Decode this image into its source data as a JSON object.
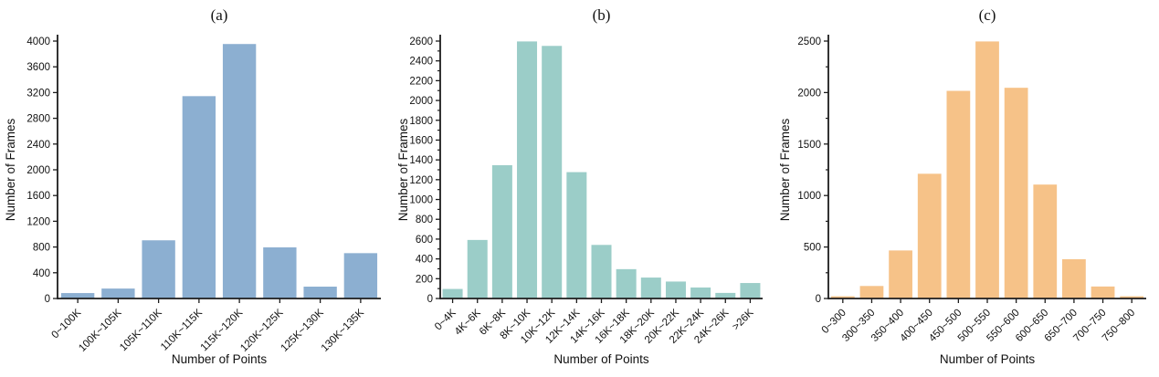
{
  "page": {
    "background": "#ffffff",
    "axis_color": "#1c1c1c",
    "text_color": "#111111"
  },
  "chart_data": [
    {
      "type": "bar",
      "title": "(a)",
      "xlabel": "Number of Points",
      "ylabel": "Number of Frames",
      "categories": [
        "0~100K",
        "100K~105K",
        "105K~110K",
        "110K~115K",
        "115K~120K",
        "120K~125K",
        "125K~130K",
        "130K~135K"
      ],
      "values": [
        90,
        160,
        910,
        3150,
        3960,
        800,
        190,
        710
      ],
      "ylim": [
        0,
        4000
      ],
      "yticks": [
        0,
        400,
        800,
        1200,
        1600,
        2000,
        2400,
        2800,
        3200,
        3600,
        4000
      ],
      "ytick_minor_step": null,
      "bar_color": "#8CAFD1",
      "bar_edge_color": "#ffffff",
      "grid": false,
      "legend_position": "none"
    },
    {
      "type": "bar",
      "title": "(b)",
      "xlabel": "Number of Points",
      "ylabel": "Number of Frames",
      "categories": [
        "0~4K",
        "4K~6K",
        "6K~8K",
        "8K~10K",
        "10K~12K",
        "12K~14K",
        "14K~16K",
        "16K~18K",
        "18K~20K",
        "20K~22K",
        "22K~24K",
        "24K~26K",
        ">26K"
      ],
      "values": [
        100,
        595,
        1350,
        2600,
        2555,
        1280,
        545,
        300,
        215,
        175,
        115,
        60,
        160
      ],
      "ylim": [
        0,
        2600
      ],
      "yticks": [
        0,
        200,
        400,
        600,
        800,
        1000,
        1200,
        1400,
        1600,
        1800,
        2000,
        2200,
        2400,
        2600
      ],
      "ytick_minor_step": 100,
      "bar_color": "#9BCDC8",
      "bar_edge_color": "#ffffff",
      "grid": false,
      "legend_position": "none"
    },
    {
      "type": "bar",
      "title": "(c)",
      "xlabel": "Number of Points",
      "ylabel": "Number of Frames",
      "categories": [
        "0~300",
        "300~350",
        "350~400",
        "400~450",
        "450~500",
        "500~550",
        "550~600",
        "600~650",
        "650~700",
        "700~750",
        "750~800"
      ],
      "values": [
        25,
        125,
        470,
        1215,
        2020,
        2500,
        2050,
        1110,
        385,
        120,
        25
      ],
      "ylim": [
        0,
        2500
      ],
      "yticks": [
        0,
        500,
        1000,
        1500,
        2000,
        2500
      ],
      "ytick_minor_step": 250,
      "bar_color": "#F6C288",
      "bar_edge_color": "#ffffff",
      "grid": false,
      "legend_position": "none"
    }
  ]
}
